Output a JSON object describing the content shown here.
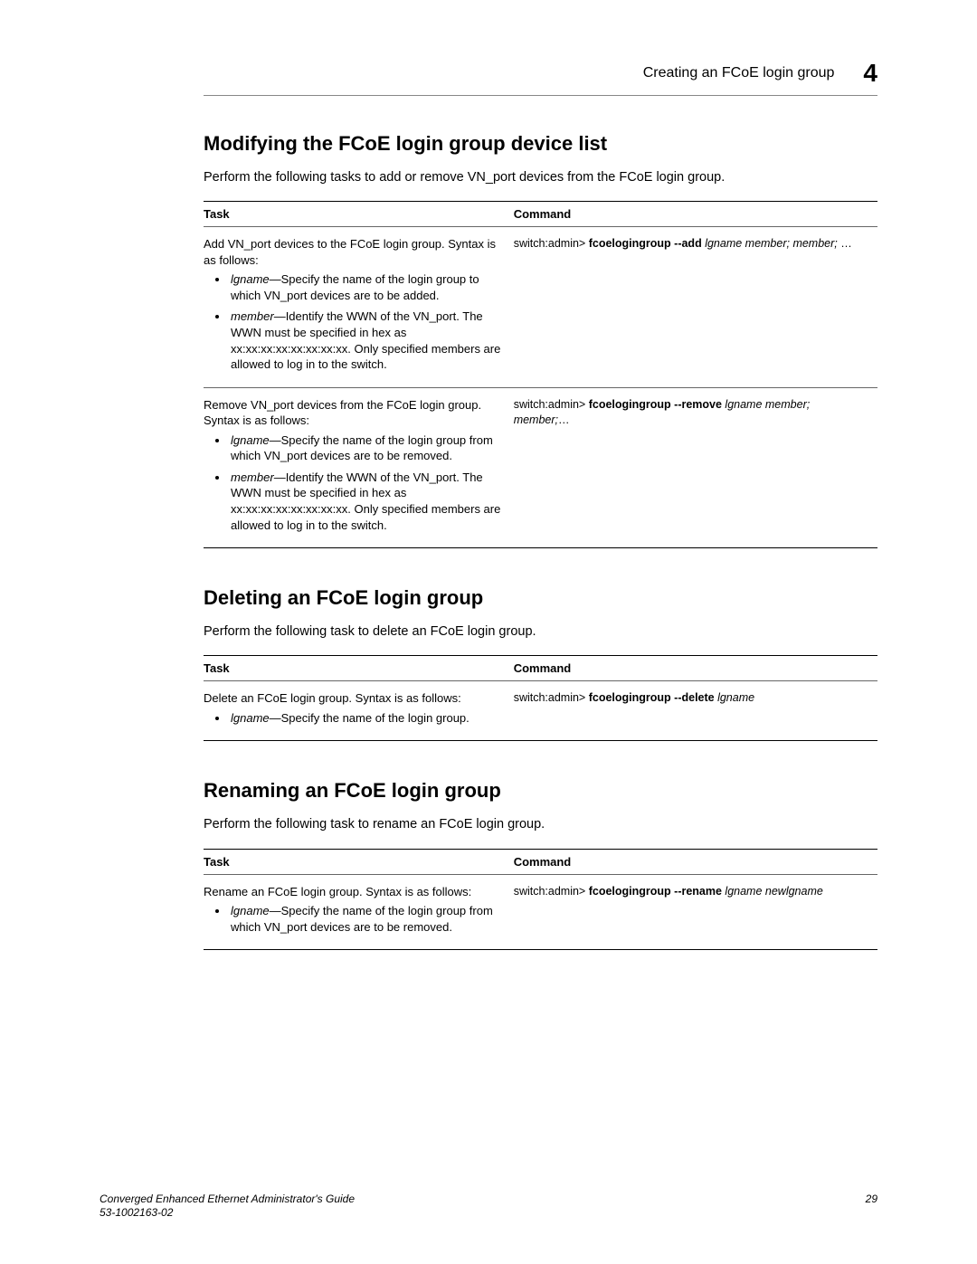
{
  "header": {
    "title": "Creating an FCoE login group",
    "chapter": "4"
  },
  "sections": [
    {
      "heading": "Modifying the FCoE login group device list",
      "intro": "Perform the following tasks to add or remove VN_port devices from the FCoE login group.",
      "table": {
        "th_task": "Task",
        "th_cmd": "Command",
        "rows": [
          {
            "task_lead": "Add VN_port devices to the FCoE login group. Syntax is as follows:",
            "bullets": [
              {
                "term": "lgname",
                "desc": "—Specify the name of the login group to which VN_port devices are to be added."
              },
              {
                "term": "member",
                "desc": "—Identify the WWN of the VN_port. The WWN must be specified in hex as xx:xx:xx:xx:xx:xx:xx:xx. Only specified members are allowed to log in to the switch."
              }
            ],
            "cmd_prefix": "switch:admin> ",
            "cmd_bold": "fcoelogingroup --add ",
            "cmd_ital": "lgname member; member; ",
            "cmd_trail": "…"
          },
          {
            "task_lead": "Remove VN_port devices from the FCoE login group. Syntax is as follows:",
            "bullets": [
              {
                "term": "lgname",
                "desc": "—Specify the name of the login group from which VN_port devices are to be removed."
              },
              {
                "term": "member",
                "desc": "—Identify the WWN of the VN_port. The WWN must be specified in hex as xx:xx:xx:xx:xx:xx:xx:xx. Only specified members are allowed to log in to the switch."
              }
            ],
            "cmd_prefix": "switch:admin> ",
            "cmd_bold": "fcoelogingroup --remove ",
            "cmd_ital": "lgname member; member;",
            "cmd_trail": "…"
          }
        ]
      }
    },
    {
      "heading": "Deleting an FCoE login group",
      "intro": "Perform the following task to delete an FCoE login group.",
      "table": {
        "th_task": "Task",
        "th_cmd": "Command",
        "rows": [
          {
            "task_lead": "Delete an FCoE login group. Syntax is as follows:",
            "bullets": [
              {
                "term": "lgname",
                "desc": "—Specify the name of the login group."
              }
            ],
            "cmd_prefix": "switch:admin> ",
            "cmd_bold": "fcoelogingroup --delete ",
            "cmd_ital": "lgname",
            "cmd_trail": ""
          }
        ]
      }
    },
    {
      "heading": "Renaming an FCoE login group",
      "intro": "Perform the following task to rename an FCoE login group.",
      "table": {
        "th_task": "Task",
        "th_cmd": "Command",
        "rows": [
          {
            "task_lead": "Rename an FCoE login group. Syntax is as follows:",
            "bullets": [
              {
                "term": "lgname",
                "desc": "—Specify the name of the login group from which VN_port devices are to be removed."
              }
            ],
            "cmd_prefix": "switch:admin> ",
            "cmd_bold": "fcoelogingroup --rename ",
            "cmd_ital": "lgname newlgname",
            "cmd_trail": ""
          }
        ]
      }
    }
  ],
  "footer": {
    "line1": "Converged Enhanced Ethernet Administrator's Guide",
    "line2": "53-1002163-02",
    "pagenum": "29"
  }
}
